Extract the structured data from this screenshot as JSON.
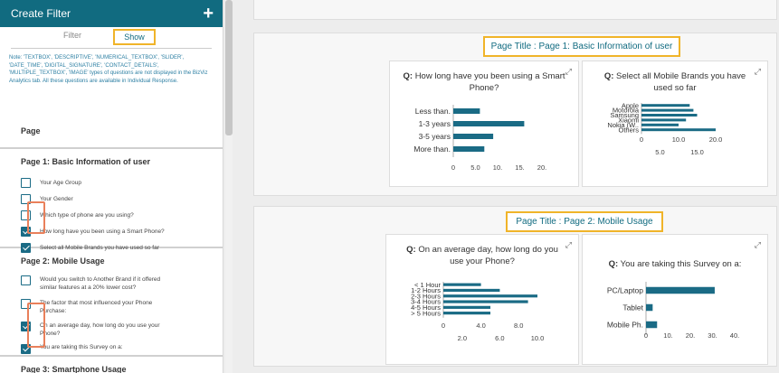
{
  "sidebar": {
    "header": "Create Filter",
    "add_icon": "plus-icon",
    "tab_filter": "Filter",
    "tab_show": "Show",
    "note": "Note: 'TEXTBOX', 'DESCRIPTIVE', 'NUMERICAL_TEXTBOX', 'SLIDER', 'DATE_TIME', 'DIGITAL_SIGNATURE', 'CONTACT_DETAILS', 'MULTIPLE_TEXTBOX', 'IMAGE' types of questions are not displayed in the BizViz Analytics tab. All these questions are available in Individual Response.",
    "page_label": "Page",
    "sections": [
      {
        "title": "Page 1: Basic Information of user",
        "items": [
          {
            "label": "Your Age Group",
            "checked": false
          },
          {
            "label": "Your Gender",
            "checked": false
          },
          {
            "label": "Which type of phone are you using?",
            "checked": false
          },
          {
            "label": "How long have you been using a Smart Phone?",
            "checked": true
          },
          {
            "label": "Select all Mobile Brands you have used so far",
            "checked": true
          }
        ]
      },
      {
        "title": "Page 2: Mobile Usage",
        "items": [
          {
            "label": "Would you switch to Another Brand if it offered similar features at a 20% lower cost?",
            "checked": false
          },
          {
            "label": "The factor that most influenced your Phone Purchase:",
            "checked": false
          },
          {
            "label": "On an average day, how long do you use your Phone?",
            "checked": true
          },
          {
            "label": "You are taking this Survey on a:",
            "checked": true
          }
        ]
      },
      {
        "title": "Page 3: Smartphone Usage",
        "items": []
      }
    ]
  },
  "main": {
    "pages": [
      {
        "title": "Page Title : Page 1: Basic Information of user",
        "charts": [
          {
            "q": "Q:",
            "title": "How long have you been using a Smart Phone?"
          },
          {
            "q": "Q:",
            "title": "Select all Mobile Brands you have used so far"
          }
        ]
      },
      {
        "title": "Page Title : Page 2: Mobile Usage",
        "charts": [
          {
            "q": "Q:",
            "title": "On an average day, how long do you use your Phone?"
          },
          {
            "q": "Q:",
            "title": "You are taking this Survey on a:"
          }
        ]
      }
    ]
  },
  "colors": {
    "accent": "#116b80",
    "bar": "#1a6b85",
    "highlight": "#f0b429",
    "check_highlight": "#e9805b"
  },
  "chart_data": [
    {
      "type": "bar",
      "orientation": "horizontal",
      "categories": [
        "Less than.",
        "1-3 years",
        "3-5 years",
        "More than."
      ],
      "values": [
        6,
        16,
        9,
        7
      ],
      "xlim": [
        0,
        20
      ],
      "xticks": [
        "0",
        "5.0",
        "10.",
        "15.",
        "20."
      ],
      "grid": false
    },
    {
      "type": "bar",
      "orientation": "horizontal",
      "categories": [
        "Apple",
        "Motorola",
        "Samsung",
        "Xiaomi",
        "Nokia (W..",
        "Others"
      ],
      "values": [
        13,
        14,
        15,
        12,
        10,
        20
      ],
      "xlim": [
        0,
        20
      ],
      "xticks_top": [
        "0",
        "10.0",
        "20.0"
      ],
      "xticks_bottom": [
        "5.0",
        "15.0"
      ],
      "grid": false
    },
    {
      "type": "bar",
      "orientation": "horizontal",
      "categories": [
        "< 1 Hour",
        "1-2 Hours",
        "2-3 Hours",
        "3-4 Hours",
        "4-5 Hours",
        "> 5 Hours"
      ],
      "values": [
        4,
        6,
        10,
        9,
        5,
        5
      ],
      "xlim": [
        0,
        10
      ],
      "xticks_top": [
        "0",
        "4.0",
        "8.0"
      ],
      "xticks_bottom": [
        "2.0",
        "6.0",
        "10.0"
      ],
      "grid": false
    },
    {
      "type": "bar",
      "orientation": "horizontal",
      "categories": [
        "PC/Laptop",
        "Tablet",
        "Mobile Ph."
      ],
      "values": [
        31,
        3,
        5
      ],
      "xlim": [
        0,
        40
      ],
      "xticks": [
        "0",
        "10.",
        "20.",
        "30.",
        "40."
      ],
      "grid": false
    }
  ]
}
